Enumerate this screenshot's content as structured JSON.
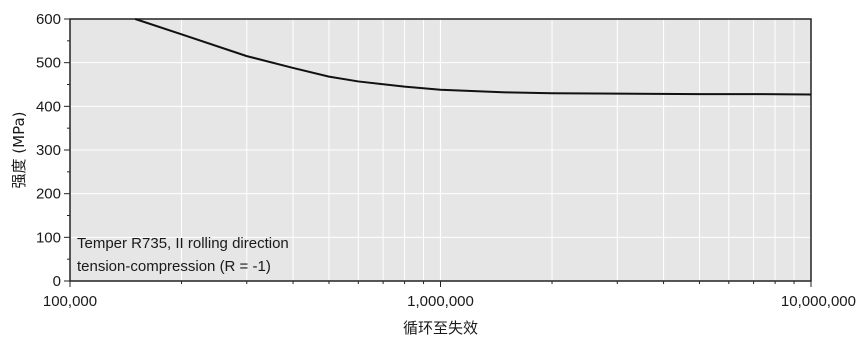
{
  "chart_data": {
    "type": "line",
    "xscale": "log",
    "xlim": [
      100000,
      10000000
    ],
    "ylim": [
      0,
      600
    ],
    "grid": true,
    "xlabel": "循环至失效",
    "ylabel": "强度 (MPa)",
    "x_tick_labels": [
      "100,000",
      "1,000,000",
      "10,000,000"
    ],
    "x_ticks": [
      100000,
      1000000,
      10000000
    ],
    "y_ticks": [
      0,
      100,
      200,
      300,
      400,
      500,
      600
    ],
    "y_tick_labels": [
      "0",
      "100",
      "200",
      "300",
      "400",
      "500",
      "600"
    ],
    "annotation": [
      "Temper R735, II rolling direction",
      "tension-compression (R = -1)"
    ],
    "colors": {
      "plot_bg": "#e6e6e6",
      "grid": "#ffffff",
      "line": "#111111"
    },
    "series": [
      {
        "x": [
          150000,
          200000,
          300000,
          400000,
          500000,
          600000,
          800000,
          1000000,
          1500000,
          2000000,
          3000000,
          5000000,
          7000000,
          10000000
        ],
        "y": [
          600,
          565,
          515,
          488,
          468,
          457,
          445,
          438,
          432,
          430,
          429,
          428,
          428,
          427
        ]
      }
    ]
  }
}
